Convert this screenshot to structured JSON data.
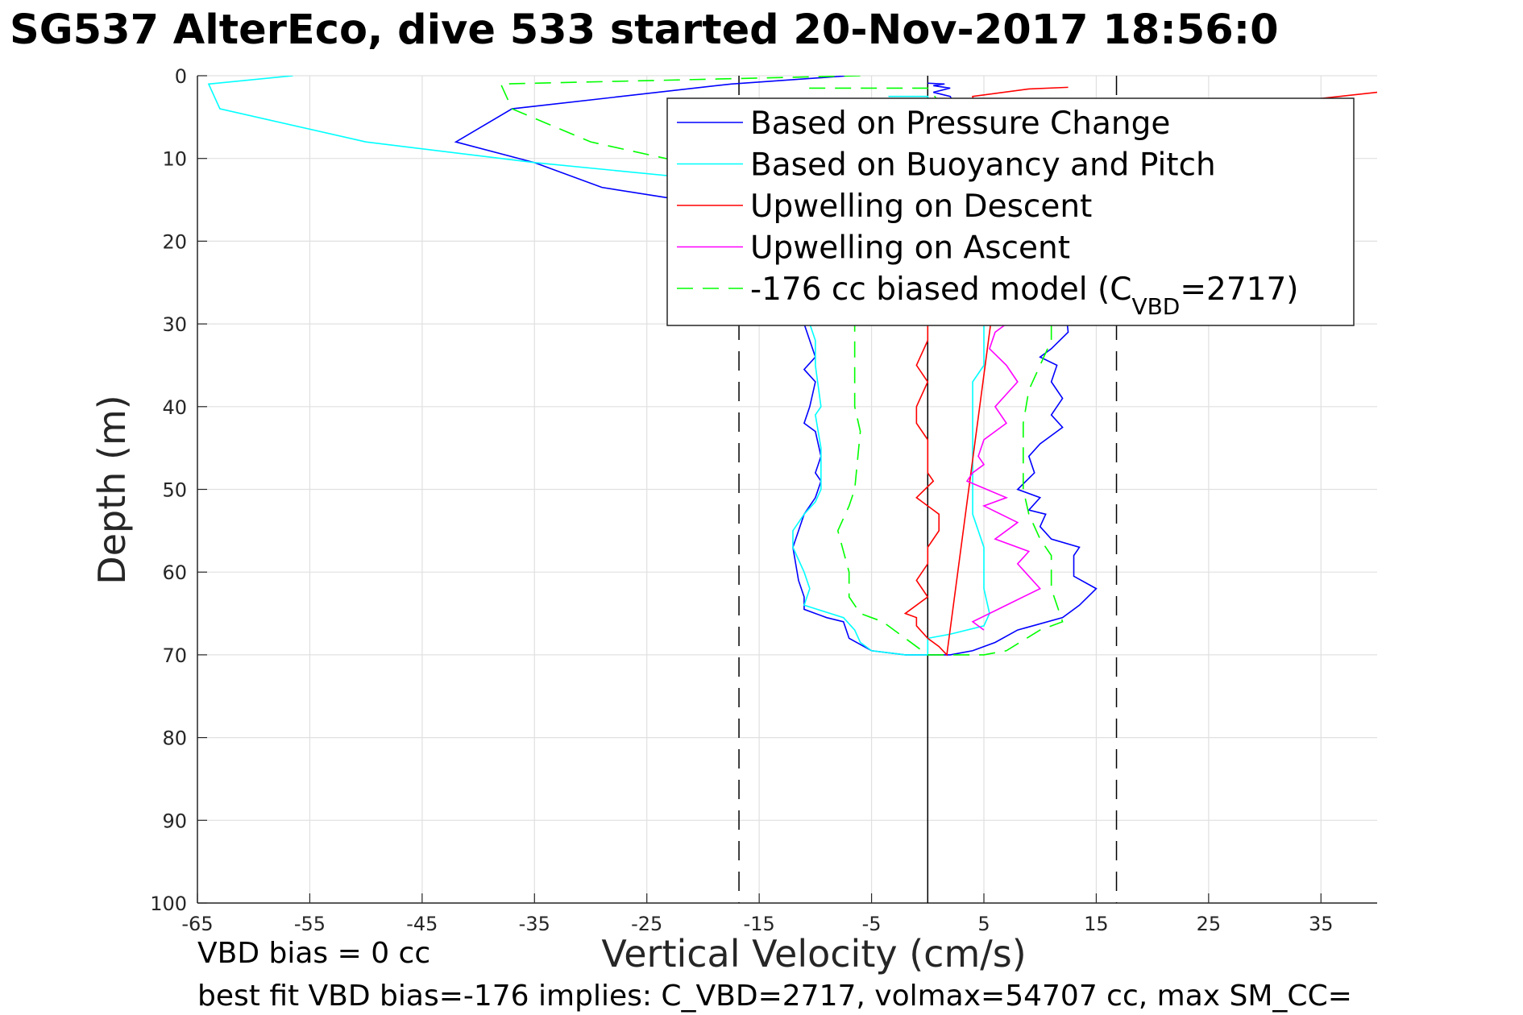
{
  "title": "SG537 AlterEco, dive 533 started 20-Nov-2017 18:56:0",
  "footer": {
    "line1": "VBD bias = 0 cc",
    "line2": "best fit VBD bias=-176 implies: C_VBD=2717, volmax=54707 cc, max SM_CC="
  },
  "chart_data": {
    "type": "line",
    "xlabel": "Vertical Velocity (cm/s)",
    "ylabel": "Depth (m)",
    "xlim": [
      -65,
      40
    ],
    "ylim": [
      0,
      100
    ],
    "y_reversed": true,
    "grid": true,
    "xticks": [
      "-65",
      "-55",
      "-45",
      "-35",
      "-25",
      "-15",
      "-5",
      "5",
      "15",
      "25",
      "35"
    ],
    "yticks": [
      "0",
      "10",
      "20",
      "30",
      "40",
      "50",
      "60",
      "70",
      "80",
      "90",
      "100"
    ],
    "legend_position": "top-right",
    "legend": {
      "entries": [
        "Based on Pressure Change",
        "Based on Buoyancy and Pitch",
        "Upwelling on Descent",
        "Upwelling on Ascent"
      ],
      "model_prefix": "-176 cc biased model (C",
      "model_sub": "VBD",
      "model_suffix": "=2717)"
    },
    "reference_lines": [
      {
        "x": -16.8,
        "style": "dashed"
      },
      {
        "x": 0,
        "style": "solid"
      },
      {
        "x": 16.8,
        "style": "dashed"
      }
    ],
    "series": [
      {
        "name": "Based on Pressure Change",
        "color": "#0000ff",
        "dash": false,
        "points": [
          [
            -7,
            0
          ],
          [
            -17.5,
            1
          ],
          [
            -37,
            4
          ],
          [
            -42,
            8
          ],
          [
            -35,
            10.5
          ],
          [
            -29,
            13.5
          ],
          [
            -22,
            15
          ],
          [
            -16,
            18
          ],
          [
            -13,
            24
          ],
          [
            -11,
            30
          ],
          [
            -10,
            34
          ],
          [
            -11,
            35.5
          ],
          [
            -10,
            37
          ],
          [
            -10.5,
            40
          ],
          [
            -11,
            42
          ],
          [
            -10,
            43
          ],
          [
            -9.5,
            46
          ],
          [
            -10,
            48
          ],
          [
            -9.5,
            49
          ],
          [
            -10,
            51
          ],
          [
            -11,
            53
          ],
          [
            -12,
            57
          ],
          [
            -11.5,
            61
          ],
          [
            -11,
            63
          ],
          [
            -11,
            64.5
          ],
          [
            -9,
            65.5
          ],
          [
            -7.5,
            66
          ],
          [
            -7,
            68
          ],
          [
            -5,
            69.5
          ],
          [
            -2,
            70
          ],
          [
            2,
            70
          ],
          [
            4,
            69.5
          ],
          [
            6,
            68.5
          ],
          [
            8,
            67
          ],
          [
            12,
            65.5
          ],
          [
            13.5,
            64
          ],
          [
            15,
            62
          ],
          [
            13,
            60.5
          ],
          [
            13,
            58
          ],
          [
            13.5,
            57
          ],
          [
            11,
            56
          ],
          [
            10,
            54.5
          ],
          [
            10.5,
            53
          ],
          [
            9,
            52.5
          ],
          [
            10,
            51
          ],
          [
            8,
            50
          ],
          [
            9.5,
            48
          ],
          [
            9,
            46
          ],
          [
            10,
            44.5
          ],
          [
            11,
            43.5
          ],
          [
            12,
            42.5
          ],
          [
            11,
            41
          ],
          [
            12,
            39
          ],
          [
            11,
            37
          ],
          [
            11.5,
            35
          ],
          [
            10,
            34
          ],
          [
            11,
            33
          ],
          [
            12.5,
            31
          ],
          [
            12,
            25
          ],
          [
            8,
            15
          ],
          [
            3,
            5
          ],
          [
            2,
            2.5
          ],
          [
            0.5,
            2
          ],
          [
            2,
            1.5
          ],
          [
            0.5,
            1.2
          ],
          [
            1.5,
            1
          ],
          [
            0,
            0.9
          ]
        ]
      },
      {
        "name": "Based on Buoyancy and Pitch",
        "color": "#00ffff",
        "dash": false,
        "points": [
          [
            -56.5,
            0
          ],
          [
            -64,
            1
          ],
          [
            -63,
            4
          ],
          [
            -50,
            8
          ],
          [
            -35,
            10.5
          ],
          [
            -20,
            12.5
          ],
          [
            -14,
            18
          ],
          [
            -11,
            25
          ],
          [
            -10.5,
            30
          ],
          [
            -10,
            32
          ],
          [
            -10,
            35
          ],
          [
            -9.5,
            40
          ],
          [
            -10,
            41
          ],
          [
            -9.5,
            45
          ],
          [
            -9.5,
            50
          ],
          [
            -10,
            51.5
          ],
          [
            -11,
            53
          ],
          [
            -12,
            55
          ],
          [
            -12,
            57
          ],
          [
            -11,
            60
          ],
          [
            -10.5,
            62
          ],
          [
            -11,
            64
          ],
          [
            -7.5,
            65.5
          ],
          [
            -6.5,
            67
          ],
          [
            -6,
            68.5
          ],
          [
            -5,
            69.5
          ],
          [
            -2,
            70
          ],
          [
            0,
            70
          ],
          [
            0,
            68
          ],
          [
            2,
            67.5
          ],
          [
            5,
            66.5
          ],
          [
            5.5,
            65
          ],
          [
            5,
            62
          ],
          [
            5,
            57
          ],
          [
            4,
            53
          ],
          [
            4,
            49
          ],
          [
            4,
            45
          ],
          [
            4,
            40
          ],
          [
            4,
            37
          ],
          [
            5,
            35
          ],
          [
            5,
            30
          ],
          [
            4,
            20
          ],
          [
            2,
            10
          ],
          [
            0,
            2.5
          ],
          [
            -3.5,
            2.5
          ]
        ]
      },
      {
        "name": "Upwelling on Descent",
        "color": "#ff0000",
        "dash": false,
        "points": [
          [
            40,
            2
          ],
          [
            30,
            3.5
          ],
          [
            20,
            5
          ],
          [
            10,
            8
          ],
          [
            2,
            15
          ],
          [
            0,
            25
          ],
          [
            0,
            30
          ],
          [
            0,
            32
          ],
          [
            -1,
            35
          ],
          [
            0,
            37
          ],
          [
            -1,
            40
          ],
          [
            -1,
            42
          ],
          [
            0,
            44
          ],
          [
            0,
            48
          ],
          [
            0.5,
            49
          ],
          [
            -1,
            51
          ],
          [
            1,
            53
          ],
          [
            1,
            55
          ],
          [
            0,
            57
          ],
          [
            0,
            59
          ],
          [
            -1,
            61
          ],
          [
            0,
            63
          ],
          [
            -2,
            65
          ],
          [
            -1,
            65.5
          ],
          [
            -1,
            66.5
          ],
          [
            0,
            68
          ],
          [
            1,
            69
          ],
          [
            1.7,
            70
          ],
          [
            5.6,
            30
          ],
          [
            6,
            20
          ],
          [
            4,
            2.5
          ],
          [
            9,
            1.6
          ],
          [
            12.5,
            1.4
          ]
        ]
      },
      {
        "name": "Upwelling on Ascent",
        "color": "#ff00ff",
        "dash": false,
        "points": [
          [
            5,
            67
          ],
          [
            4,
            66
          ],
          [
            7,
            64
          ],
          [
            10,
            62
          ],
          [
            8,
            59
          ],
          [
            9,
            57.5
          ],
          [
            6,
            56
          ],
          [
            8,
            54
          ],
          [
            5,
            52
          ],
          [
            7,
            51
          ],
          [
            3.5,
            49
          ],
          [
            4,
            48
          ],
          [
            5,
            47
          ],
          [
            4.5,
            46
          ],
          [
            5,
            44
          ],
          [
            7,
            42
          ],
          [
            6,
            40
          ],
          [
            7,
            38.5
          ],
          [
            8,
            37
          ],
          [
            7,
            35
          ],
          [
            5.5,
            33
          ],
          [
            6,
            31
          ],
          [
            7,
            30
          ],
          [
            8,
            20
          ],
          [
            6,
            10
          ]
        ]
      },
      {
        "name": "-176 cc biased model",
        "color": "#00ff00",
        "dash": true,
        "points": [
          [
            -6,
            0
          ],
          [
            -38,
            1
          ],
          [
            -37,
            4
          ],
          [
            -30,
            8
          ],
          [
            -20,
            11
          ],
          [
            -10,
            16
          ],
          [
            -7,
            22
          ],
          [
            -6.5,
            30
          ],
          [
            -6.5,
            40
          ],
          [
            -6,
            43
          ],
          [
            -6.5,
            50
          ],
          [
            -7,
            52
          ],
          [
            -8,
            55
          ],
          [
            -7,
            60
          ],
          [
            -7,
            63
          ],
          [
            -6,
            65
          ],
          [
            -4,
            66
          ],
          [
            -2,
            68
          ],
          [
            0,
            70
          ],
          [
            5,
            70
          ],
          [
            7,
            69.5
          ],
          [
            10,
            67
          ],
          [
            12,
            66
          ],
          [
            11,
            62
          ],
          [
            11,
            58
          ],
          [
            10,
            56
          ],
          [
            9,
            53
          ],
          [
            8.5,
            50
          ],
          [
            8.5,
            47
          ],
          [
            8.5,
            42
          ],
          [
            9,
            38
          ],
          [
            10,
            35
          ],
          [
            11,
            32
          ],
          [
            11,
            30
          ],
          [
            8,
            20
          ],
          [
            4,
            8
          ],
          [
            0,
            1.5
          ],
          [
            -11,
            1.5
          ]
        ]
      }
    ]
  }
}
